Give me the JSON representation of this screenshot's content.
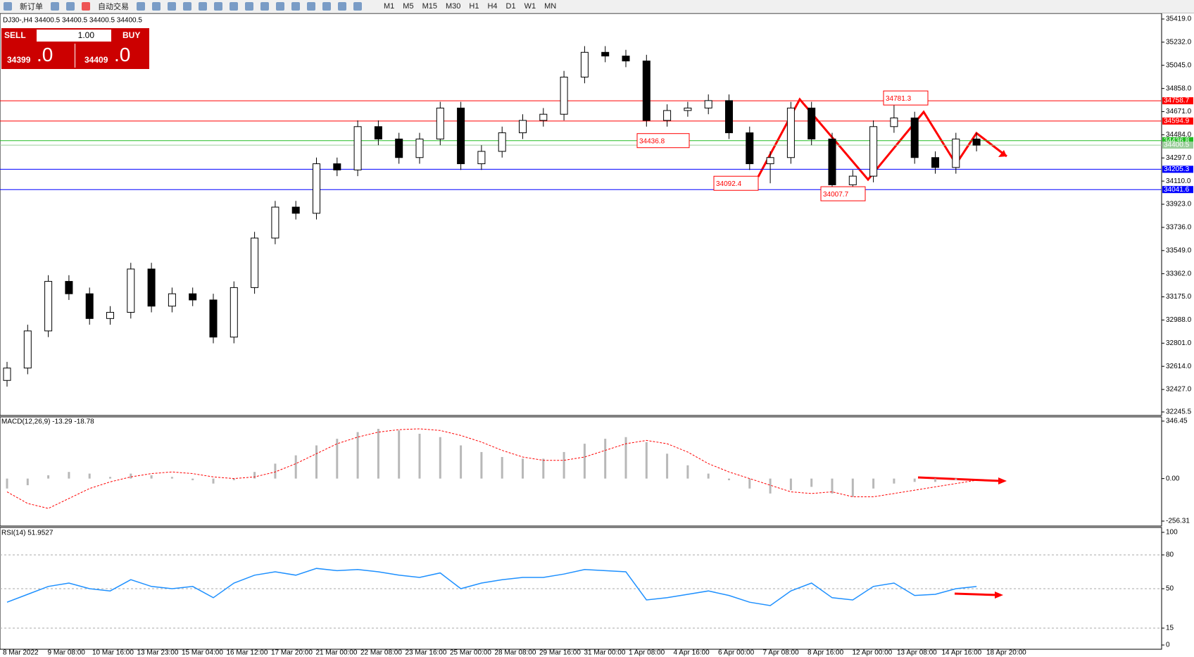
{
  "toolbar": {
    "order_button": "新订单",
    "auto_trading": "自动交易",
    "timeframes": [
      "M1",
      "M5",
      "M15",
      "M30",
      "H1",
      "H4",
      "D1",
      "W1",
      "MN"
    ]
  },
  "trade_panel": {
    "sell": "SELL",
    "lot": "1.00",
    "buy": "BUY",
    "sell_price_main": "34399",
    "sell_price_frac": ".0",
    "buy_price_main": "34409",
    "buy_price_frac": ".0"
  },
  "time_axis": {
    "labels": [
      "8 Mar 2022",
      "9 Mar 08:00",
      "10 Mar 16:00",
      "13 Mar 23:00",
      "15 Mar 04:00",
      "16 Mar 12:00",
      "17 Mar 20:00",
      "21 Mar 00:00",
      "22 Mar 08:00",
      "23 Mar 16:00",
      "25 Mar 00:00",
      "28 Mar 08:00",
      "29 Mar 16:00",
      "31 Mar 00:00",
      "1 Apr 08:00",
      "4 Apr 16:00",
      "6 Apr 00:00",
      "7 Apr 08:00",
      "8 Apr 16:00",
      "12 Apr 00:00",
      "13 Apr 08:00",
      "14 Apr 16:00",
      "18 Apr 20:00"
    ]
  },
  "chart_data": [
    {
      "type": "candlestick",
      "title": "DJ30-,H4  34400.5 34400.5 34400.5 34400.5",
      "open": [
        32500,
        32600,
        32900,
        33300,
        33200,
        33000,
        33050,
        33400,
        33100,
        33200,
        33150,
        32850,
        33250,
        33650,
        33900,
        33850,
        34250,
        34200,
        34550,
        34450,
        34300,
        34450,
        34700,
        34250,
        34350,
        34500,
        34600,
        34650,
        34950,
        35150,
        35120,
        35080,
        34600,
        34680,
        34700,
        34760,
        34500,
        34250,
        34300,
        34700,
        34450,
        34080,
        34150,
        34550,
        34620,
        34300,
        34220,
        34450
      ],
      "high": [
        32650,
        32950,
        33350,
        33350,
        33250,
        33100,
        33450,
        33450,
        33250,
        33250,
        33200,
        33300,
        33700,
        33950,
        33950,
        34300,
        34300,
        34600,
        34600,
        34500,
        34500,
        34750,
        34750,
        34400,
        34550,
        34650,
        34700,
        35000,
        35200,
        35200,
        35170,
        35130,
        34730,
        34750,
        34810,
        34810,
        34550,
        34350,
        34750,
        34750,
        34500,
        34200,
        34600,
        34781.3,
        34670,
        34350,
        34500,
        34500
      ],
      "low": [
        32450,
        32550,
        32850,
        33150,
        32950,
        32950,
        33000,
        33050,
        33050,
        33100,
        32800,
        32800,
        33200,
        33600,
        33800,
        33800,
        34150,
        34150,
        34400,
        34250,
        34250,
        34400,
        34200,
        34200,
        34300,
        34450,
        34550,
        34600,
        34900,
        35070,
        35030,
        34550,
        34550,
        34630,
        34650,
        34450,
        34200,
        34092.4,
        34250,
        34400,
        34030,
        34007.7,
        34100,
        34500,
        34250,
        34170,
        34170,
        34350
      ],
      "close": [
        32600,
        32900,
        33300,
        33200,
        33000,
        33050,
        33400,
        33100,
        33200,
        33150,
        32850,
        33250,
        33650,
        33900,
        33850,
        34250,
        34200,
        34550,
        34450,
        34300,
        34450,
        34700,
        34250,
        34350,
        34500,
        34600,
        34650,
        34950,
        35150,
        35120,
        35080,
        34600,
        34680,
        34700,
        34760,
        34500,
        34250,
        34300,
        34700,
        34450,
        34080,
        34150,
        34550,
        34620,
        34300,
        34220,
        34450,
        34400
      ],
      "up_color": "#ffffff",
      "down_color": "#000000",
      "ylim": [
        32245.5,
        35419
      ],
      "yticks": [
        {
          "value": 35419,
          "label": "35419.0"
        },
        {
          "value": 35232,
          "label": "35232.0"
        },
        {
          "value": 35045,
          "label": "35045.0"
        },
        {
          "value": 34858,
          "label": "34858.0"
        },
        {
          "value": 34671,
          "label": "34671.0"
        },
        {
          "value": 34484,
          "label": "34484.0"
        },
        {
          "value": 34297,
          "label": "34297.0"
        },
        {
          "value": 34110,
          "label": "34110.0"
        },
        {
          "value": 33923,
          "label": "33923.0"
        },
        {
          "value": 33736,
          "label": "33736.0"
        },
        {
          "value": 33549,
          "label": "33549.0"
        },
        {
          "value": 33362,
          "label": "33362.0"
        },
        {
          "value": 33175,
          "label": "33175.0"
        },
        {
          "value": 32988,
          "label": "32988.0"
        },
        {
          "value": 32801,
          "label": "32801.0"
        },
        {
          "value": 32614,
          "label": "32614.0"
        },
        {
          "value": 32427,
          "label": "32427.0"
        },
        32245.5
      ],
      "levels": [
        {
          "value": 34758.7,
          "color": "#ff0000"
        },
        {
          "value": 34594.9,
          "color": "#ff0000"
        },
        {
          "value": 34436.8,
          "color": "#22bb22"
        },
        {
          "value": 34400.5,
          "color": "#9acd9a"
        },
        {
          "value": 34205.3,
          "color": "#0000ff"
        },
        {
          "value": 34041.6,
          "color": "#0000ff"
        }
      ],
      "annotations": [
        34781.3,
        34436.8,
        34092.4,
        34007.7
      ]
    },
    {
      "type": "macd",
      "title": "MACD(12,26,9) -13.29 -18.78",
      "histogram": [
        -60,
        -40,
        20,
        40,
        30,
        10,
        30,
        20,
        10,
        -10,
        -30,
        -10,
        40,
        90,
        140,
        200,
        240,
        280,
        300,
        290,
        270,
        250,
        200,
        160,
        130,
        120,
        120,
        160,
        210,
        240,
        250,
        220,
        150,
        80,
        30,
        -10,
        -60,
        -90,
        -70,
        -50,
        -90,
        -110,
        -60,
        -30,
        -20,
        -20,
        -10,
        0
      ],
      "signal": [
        -80,
        -150,
        -180,
        -120,
        -60,
        -20,
        10,
        30,
        40,
        30,
        10,
        0,
        10,
        40,
        90,
        150,
        210,
        250,
        280,
        295,
        300,
        290,
        260,
        220,
        170,
        130,
        110,
        110,
        130,
        170,
        210,
        230,
        210,
        160,
        90,
        40,
        0,
        -40,
        -80,
        -90,
        -80,
        -110,
        -110,
        -90,
        -70,
        -50,
        -30,
        -10
      ],
      "histogram_color": "#b8b8b8",
      "signal_color": "#ff0000",
      "ylim": [
        -256.31,
        346.45
      ],
      "yticks": [
        346.45,
        {
          "value": 0,
          "label": "0.00"
        },
        -256.31
      ]
    },
    {
      "type": "rsi",
      "title": "RSI(14) 51.9527",
      "values": [
        38,
        45,
        52,
        55,
        50,
        48,
        58,
        52,
        50,
        52,
        42,
        55,
        62,
        65,
        62,
        68,
        66,
        67,
        65,
        62,
        60,
        64,
        50,
        55,
        58,
        60,
        60,
        63,
        67,
        66,
        65,
        40,
        42,
        45,
        48,
        44,
        38,
        35,
        48,
        55,
        42,
        40,
        52,
        55,
        44,
        45,
        50,
        51.9527
      ],
      "color": "#1e90ff",
      "ylim": [
        0,
        100
      ],
      "yticks": [
        100,
        80,
        50,
        15,
        0
      ],
      "grid": true
    }
  ]
}
